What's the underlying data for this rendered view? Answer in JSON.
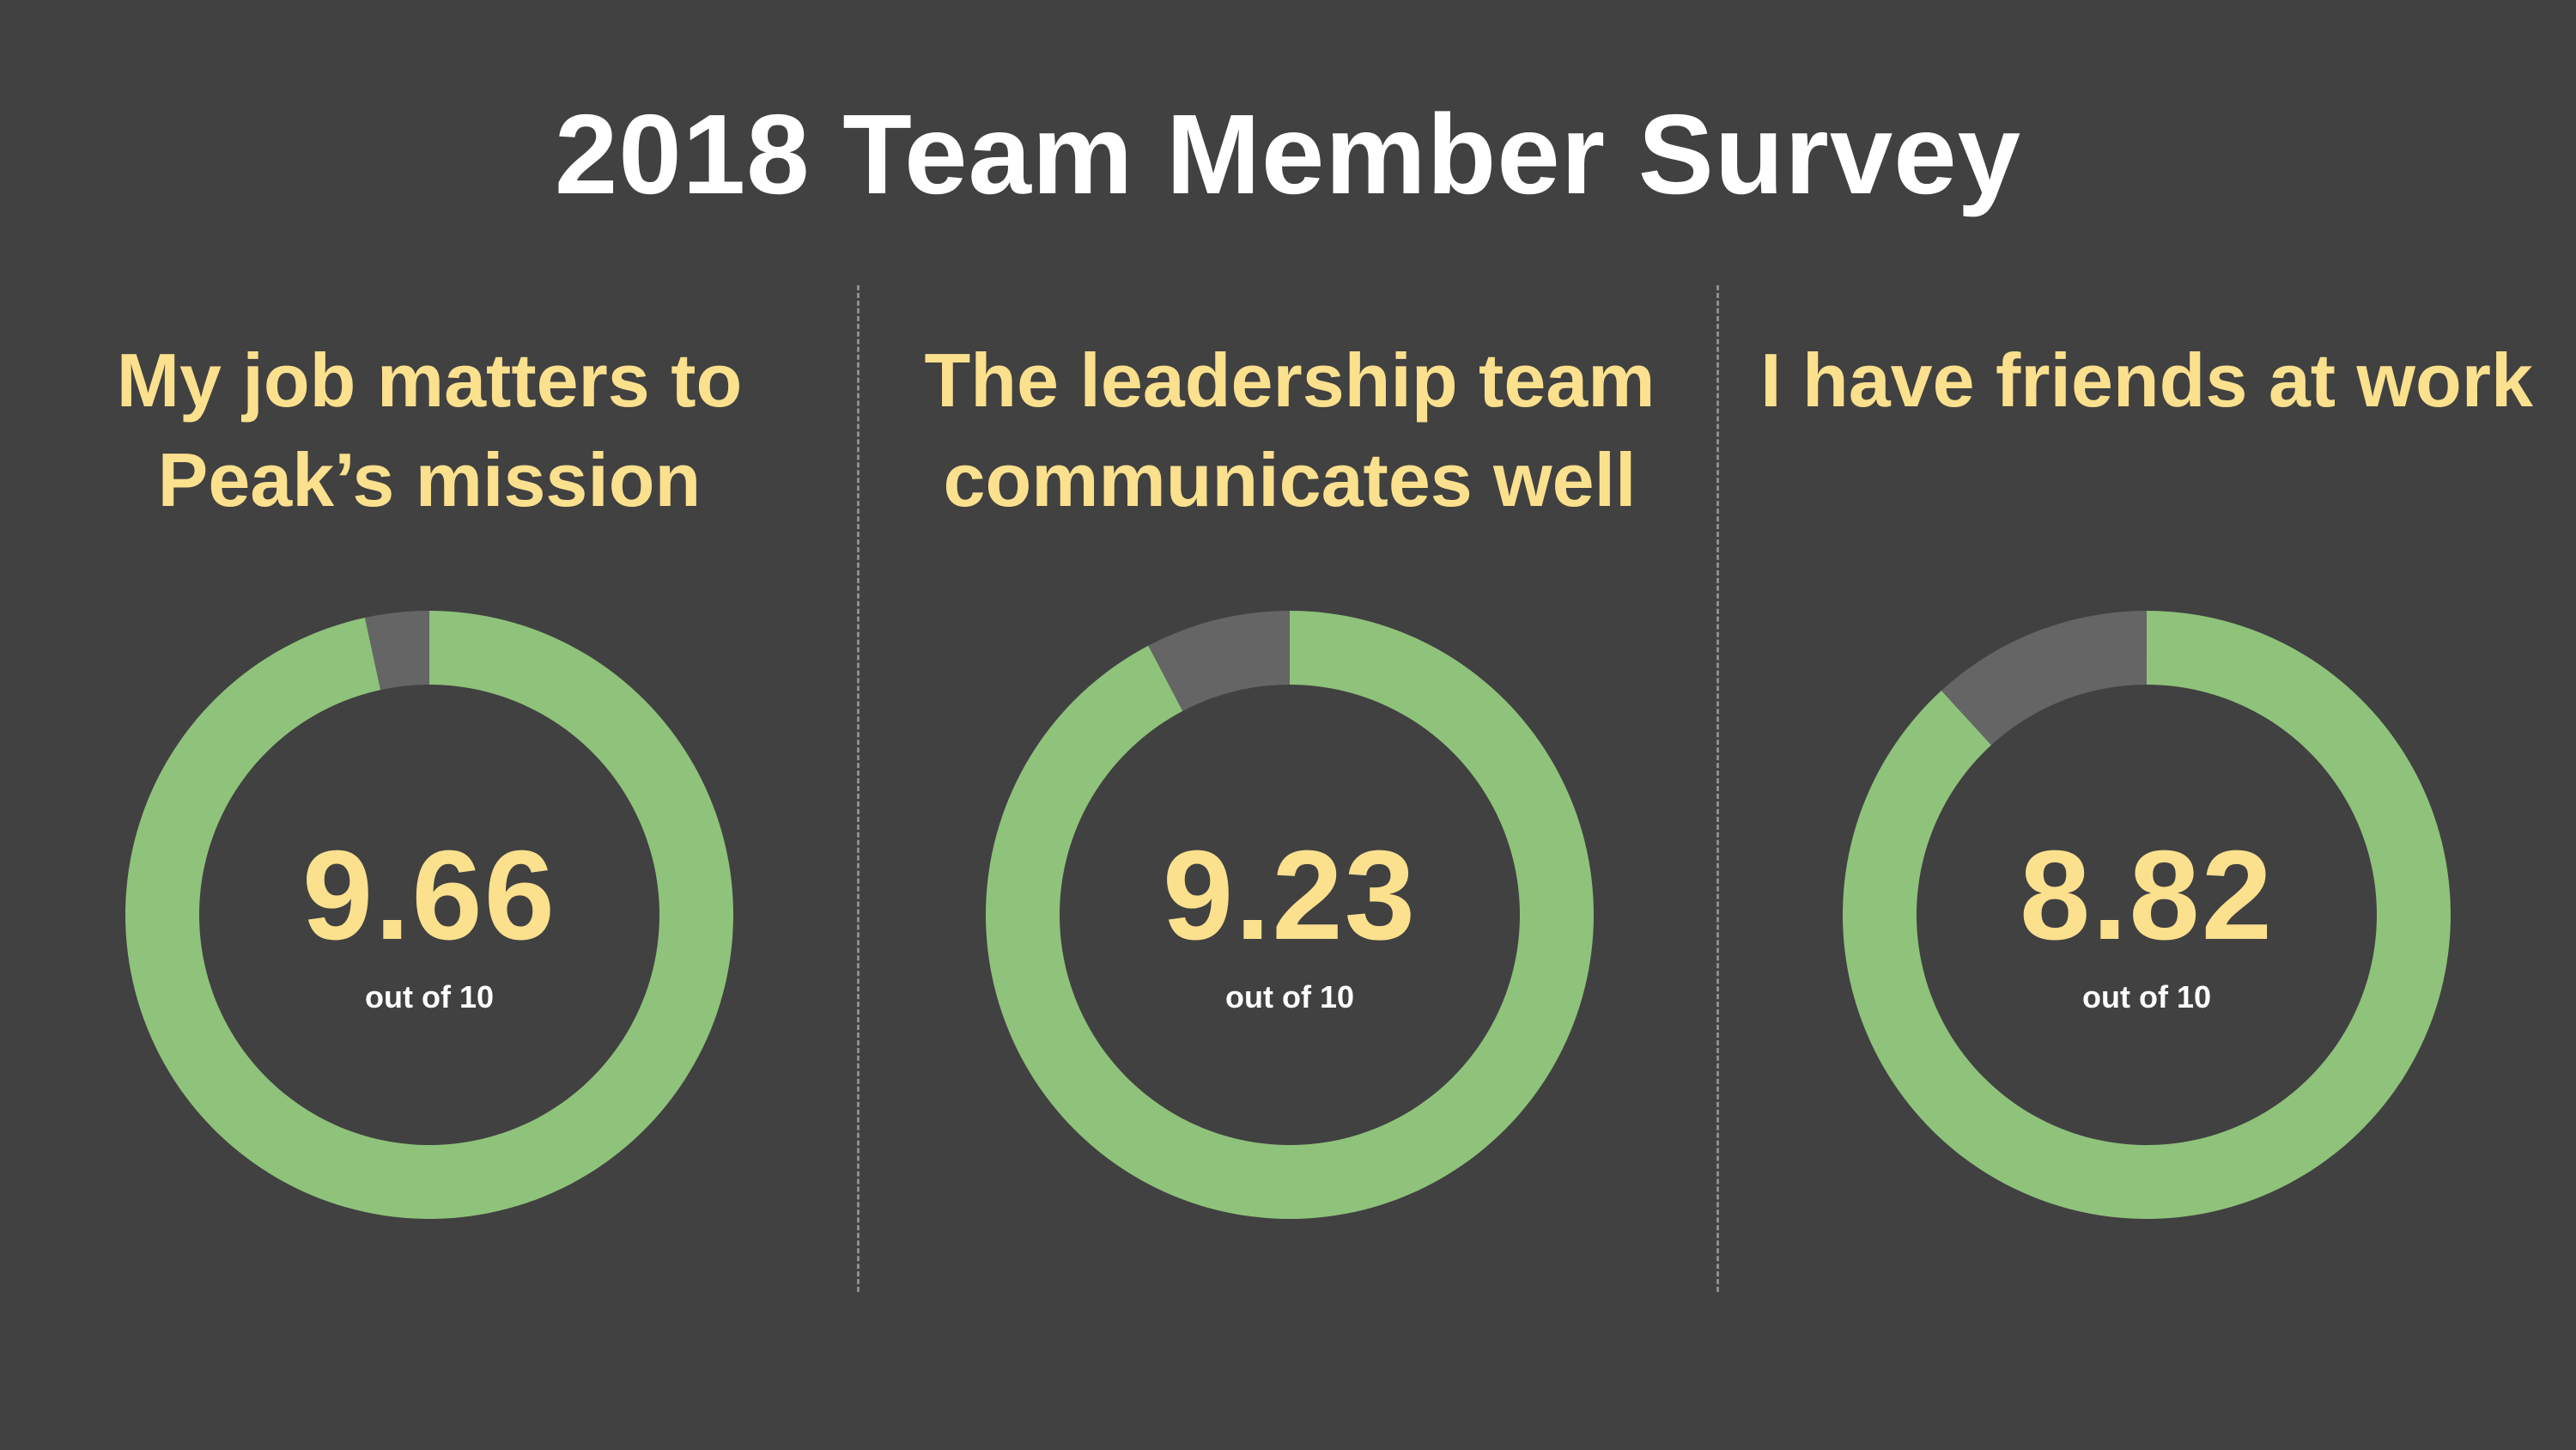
{
  "page": {
    "title": "2018 Team Member Survey",
    "colors": {
      "background": "#414141",
      "heading": "#fbe08e",
      "score_fill": "#8fc27b",
      "remainder": "#656565",
      "title": "#ffffff"
    }
  },
  "chart_data": [
    {
      "type": "pie",
      "variant": "donut",
      "title": "My job matters to Peak’s mission",
      "value": 9.66,
      "value_label": "9.66",
      "max": 10,
      "caption": "out of 10"
    },
    {
      "type": "pie",
      "variant": "donut",
      "title": "The leadership team communicates well",
      "value": 9.23,
      "value_label": "9.23",
      "max": 10,
      "caption": "out of 10"
    },
    {
      "type": "pie",
      "variant": "donut",
      "title": "I have friends at work",
      "value": 8.82,
      "value_label": "8.82",
      "max": 10,
      "caption": "out of 10"
    }
  ]
}
